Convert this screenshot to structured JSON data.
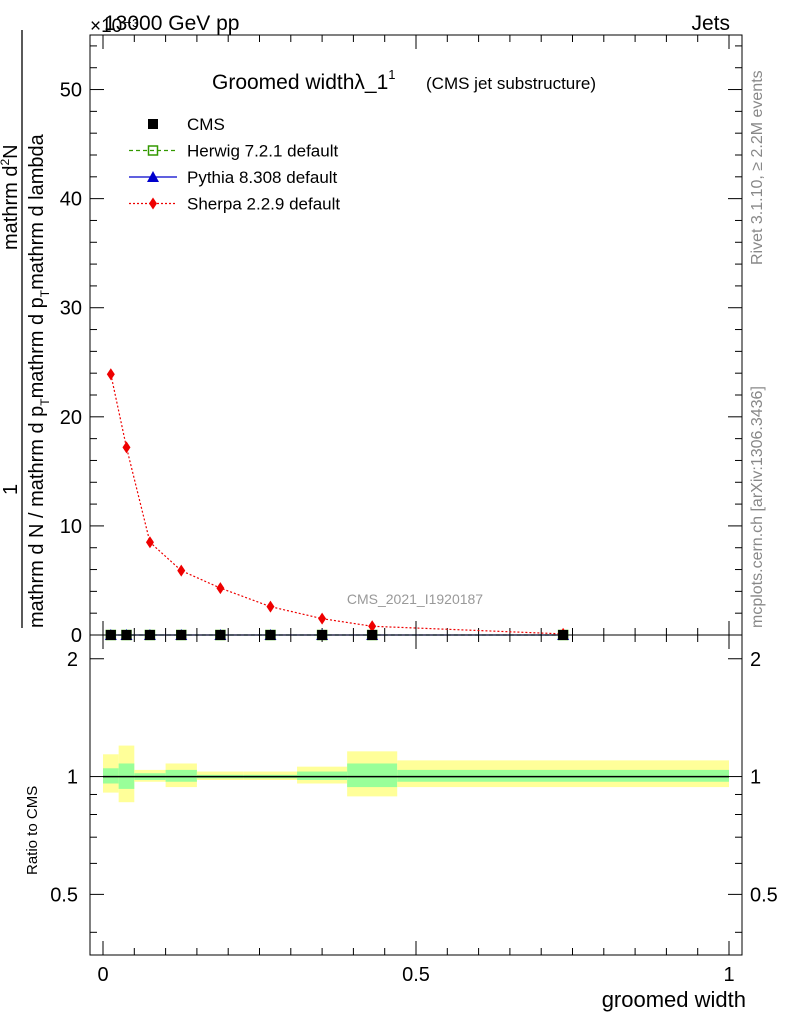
{
  "header": {
    "energy_label": "13000 GeV pp",
    "category_label": "Jets",
    "exponent_label": "×10⁻³",
    "rivet_label": "Rivet 3.1.10, ≥ 2.2M events",
    "mcplots_label": "mcplots.cern.ch [arXiv:1306.3436]",
    "analysis_watermark": "CMS_2021_I1920187"
  },
  "chart_data": [
    {
      "type": "line",
      "title": "Groomed widthλ_1",
      "title_superscript": "1",
      "subtitle": "(CMS jet substructure)",
      "xlabel": "groomed width",
      "ylabel_numerator": "mathrm d²N",
      "ylabel_numerator_prefix": "1",
      "ylabel_denominator": "mathrm d N / mathrm d p_T mathrm d p_T mathrm d lambda",
      "ylabel_parts": {
        "num_top": "mathrm d",
        "num_sup": "2",
        "num_N": "N",
        "den_left": "mathrm d N / mathrm d p",
        "den_sub1": "T",
        "den_mid": "mathrm d p",
        "den_sub2": "T",
        "den_right": "mathrm d lambda",
        "prefix_one": "1"
      },
      "xlim": [
        0,
        1
      ],
      "ylim": [
        0,
        55
      ],
      "y_scale_note": "×10⁻³",
      "yticks": [
        0,
        10,
        20,
        30,
        40,
        50
      ],
      "ytick_labels": [
        "0",
        "10",
        "20",
        "30",
        "40",
        "50"
      ],
      "legend_position": "top-left",
      "series": [
        {
          "name": "CMS",
          "color": "#000000",
          "marker": "filled-square",
          "x": [
            0.0125,
            0.0375,
            0.075,
            0.125,
            0.1875,
            0.2675,
            0.35,
            0.43,
            0.735
          ],
          "y": [
            0,
            0,
            0,
            0,
            0,
            0,
            0,
            0,
            0
          ]
        },
        {
          "name": "Herwig 7.2.1 default",
          "color": "#339900",
          "marker": "open-square",
          "line": "dashed",
          "x": [
            0.0125,
            0.0375,
            0.075,
            0.125,
            0.1875,
            0.2675,
            0.35,
            0.43,
            0.735
          ],
          "y": [
            0,
            0,
            0,
            0,
            0,
            0,
            0,
            0,
            0
          ]
        },
        {
          "name": "Pythia 8.308 default",
          "color": "#0000cc",
          "marker": "filled-triangle",
          "line": "solid",
          "x": [
            0.0125,
            0.0375,
            0.075,
            0.125,
            0.1875,
            0.2675,
            0.35,
            0.43,
            0.735
          ],
          "y": [
            0,
            0,
            0,
            0,
            0,
            0,
            0,
            0,
            0
          ]
        },
        {
          "name": "Sherpa 2.2.9 default",
          "color": "#ee0000",
          "marker": "filled-diamond",
          "line": "dotted",
          "x": [
            0.0125,
            0.0375,
            0.075,
            0.125,
            0.1875,
            0.2675,
            0.35,
            0.43,
            0.735
          ],
          "y": [
            23.9,
            17.2,
            8.5,
            5.9,
            4.3,
            2.6,
            1.5,
            0.8,
            0.1
          ]
        }
      ]
    },
    {
      "type": "line",
      "ylabel": "Ratio to CMS",
      "xlabel": "groomed width",
      "xlim": [
        0,
        1
      ],
      "ylim": [
        0.35,
        2.3
      ],
      "y_scale": "log",
      "yticks": [
        0.5,
        1,
        2
      ],
      "ytick_labels": [
        "0.5",
        "1",
        "2"
      ],
      "xticks": [
        0,
        0.5,
        1
      ],
      "xtick_labels": [
        "0",
        "0.5",
        "1"
      ],
      "reference_line": 1,
      "bands": [
        {
          "x0": 0.0,
          "x1": 0.025,
          "inner": [
            0.96,
            1.05
          ],
          "outer": [
            0.91,
            1.14
          ]
        },
        {
          "x0": 0.025,
          "x1": 0.05,
          "inner": [
            0.93,
            1.08
          ],
          "outer": [
            0.86,
            1.2
          ]
        },
        {
          "x0": 0.05,
          "x1": 0.1,
          "inner": [
            0.98,
            1.02
          ],
          "outer": [
            0.97,
            1.04
          ]
        },
        {
          "x0": 0.1,
          "x1": 0.15,
          "inner": [
            0.97,
            1.04
          ],
          "outer": [
            0.94,
            1.08
          ]
        },
        {
          "x0": 0.15,
          "x1": 0.225,
          "inner": [
            0.99,
            1.01
          ],
          "outer": [
            0.98,
            1.03
          ]
        },
        {
          "x0": 0.225,
          "x1": 0.31,
          "inner": [
            0.99,
            1.01
          ],
          "outer": [
            0.98,
            1.03
          ]
        },
        {
          "x0": 0.31,
          "x1": 0.39,
          "inner": [
            0.98,
            1.03
          ],
          "outer": [
            0.96,
            1.06
          ]
        },
        {
          "x0": 0.39,
          "x1": 0.47,
          "inner": [
            0.94,
            1.08
          ],
          "outer": [
            0.89,
            1.16
          ]
        },
        {
          "x0": 0.47,
          "x1": 1.0,
          "inner": [
            0.97,
            1.04
          ],
          "outer": [
            0.94,
            1.1
          ]
        }
      ],
      "band_colors": {
        "inner": "#99ff99",
        "outer": "#ffff99"
      }
    }
  ]
}
